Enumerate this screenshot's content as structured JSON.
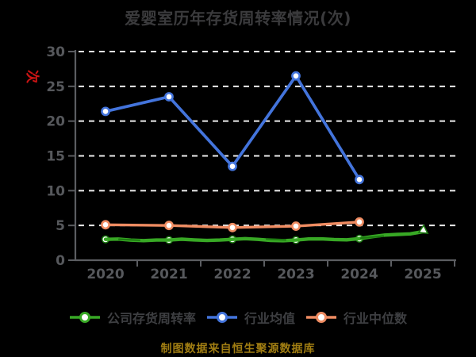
{
  "title": "爱婴室历年存货周转率情况(次)",
  "footer": "制图数据来自恒生聚源数据库",
  "colors": {
    "background": "#000000",
    "title_text": "#3b3b3d",
    "axis_text": "#56585c",
    "axis_line": "#5b5d61",
    "gridline": "#ececec",
    "legend_text": "#3e3f42",
    "y_unit_accent": "#cc1414",
    "footer_text": "#a07d12",
    "company_green": "#38a825",
    "company_green_dark": "#1c7a10",
    "industry_blue": "#4374dc",
    "median_orange": "#ef8c62",
    "marker_fill": "#ffffff"
  },
  "chart_data": {
    "type": "line",
    "title": "爱婴室历年存货周转率情况(次)",
    "categories": [
      "2020",
      "2021",
      "2022",
      "2023",
      "2024",
      "2025"
    ],
    "series": [
      {
        "name": "公司存货周转率",
        "color": "#38a825",
        "marker": "circle-white-fill",
        "line_style": "hand-drawn",
        "arrow_end": true,
        "values": [
          3.0,
          2.9,
          3.0,
          2.9,
          3.1,
          4.1
        ]
      },
      {
        "name": "行业均值",
        "color": "#4374dc",
        "marker": "circle-white-fill",
        "line_style": "solid",
        "arrow_end": false,
        "values": [
          21.4,
          23.5,
          13.5,
          26.5,
          11.6,
          null
        ]
      },
      {
        "name": "行业中位数",
        "color": "#ef8c62",
        "marker": "circle-white-fill",
        "line_style": "solid",
        "arrow_end": false,
        "values": [
          5.1,
          5.0,
          4.7,
          4.9,
          5.5,
          null
        ]
      }
    ],
    "xlabel": "",
    "ylabel": "次",
    "ylim": [
      0,
      30
    ],
    "yticks": [
      0,
      5,
      10,
      15,
      20,
      25,
      30
    ],
    "grid": "horizontal-dashed",
    "legend_position": "bottom"
  }
}
